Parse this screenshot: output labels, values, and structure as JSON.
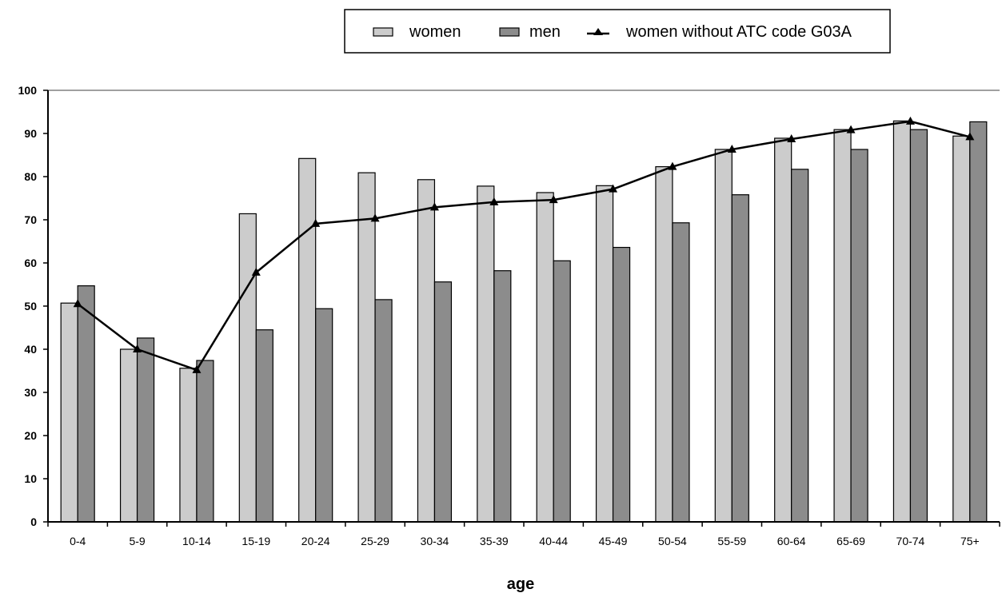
{
  "chart_data": {
    "type": "bar",
    "categories": [
      "0-4",
      "5-9",
      "10-14",
      "15-19",
      "20-24",
      "25-29",
      "30-34",
      "35-39",
      "40-44",
      "45-49",
      "50-54",
      "55-59",
      "60-64",
      "65-69",
      "70-74",
      "75+"
    ],
    "series": [
      {
        "name": "women",
        "kind": "bar",
        "color": "#cccccc",
        "values": [
          50.7,
          40.0,
          35.6,
          71.4,
          84.2,
          80.9,
          79.3,
          77.8,
          76.3,
          77.9,
          82.3,
          86.3,
          88.9,
          90.9,
          92.9,
          89.4
        ]
      },
      {
        "name": "men",
        "kind": "bar",
        "color": "#8c8c8c",
        "values": [
          54.7,
          42.6,
          37.4,
          44.5,
          49.4,
          51.5,
          55.6,
          58.2,
          60.5,
          63.6,
          69.3,
          75.8,
          81.7,
          86.3,
          90.9,
          92.7
        ]
      },
      {
        "name": "women without ATC code G03A",
        "kind": "line",
        "color": "#000000",
        "values": [
          50.5,
          40.0,
          35.2,
          57.8,
          69.1,
          70.3,
          72.9,
          74.1,
          74.6,
          77.1,
          82.3,
          86.3,
          88.7,
          90.8,
          92.8,
          89.2
        ]
      }
    ],
    "xlabel": "age",
    "ylabel": "",
    "ylim": [
      0,
      100
    ],
    "yticks": [
      "0",
      "10",
      "20",
      "30",
      "40",
      "50",
      "60",
      "70",
      "80",
      "90",
      "100"
    ],
    "grid": "top border line only",
    "legend_position": "top"
  }
}
